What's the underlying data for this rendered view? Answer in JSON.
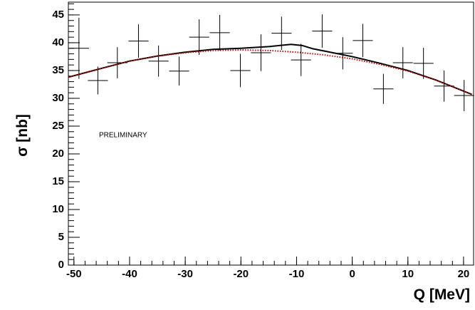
{
  "chart_data": {
    "type": "scatter",
    "xlabel": "Q [MeV]",
    "ylabel": "σ [nb]",
    "annotation": {
      "text": "PRELIMINARY",
      "x": -45.5,
      "y": 23
    },
    "xlim": [
      -51,
      21.8
    ],
    "ylim": [
      0,
      47.3
    ],
    "xticks": [
      -50,
      -40,
      -30,
      -20,
      -10,
      0,
      10,
      20
    ],
    "yticks": [
      0,
      5,
      10,
      15,
      20,
      25,
      30,
      35,
      40,
      45
    ],
    "series": [
      {
        "type": "errorbar",
        "color": "#000000",
        "x": [
          -49.1,
          -45.7,
          -42.2,
          -38.4,
          -34.8,
          -31.1,
          -27.5,
          -23.8,
          -20.1,
          -16.4,
          -12.7,
          -9.2,
          -5.4,
          -1.7,
          1.9,
          5.6,
          9.1,
          12.8,
          16.5,
          20.1
        ],
        "values": [
          39.0,
          33.2,
          36.4,
          40.3,
          36.7,
          34.9,
          41.0,
          41.8,
          35.0,
          38.2,
          41.7,
          36.9,
          42.1,
          38.1,
          40.4,
          31.7,
          36.4,
          36.3,
          32.2,
          30.5
        ],
        "errors": [
          5.5,
          2.5,
          2.8,
          3.0,
          2.8,
          2.6,
          3.2,
          3.2,
          3.0,
          3.3,
          3.0,
          2.9,
          3.0,
          2.9,
          3.0,
          2.7,
          2.8,
          2.8,
          2.8,
          2.8
        ],
        "xerr": 1.8
      },
      {
        "type": "line",
        "color": "#000000",
        "dash": false,
        "x": [
          -51,
          -45,
          -40,
          -35,
          -30,
          -25,
          -20,
          -15,
          -11,
          -9,
          -7,
          -5,
          0,
          5,
          10,
          15,
          20,
          21.5
        ],
        "values": [
          33.8,
          35.4,
          36.7,
          37.6,
          38.3,
          38.8,
          39.0,
          39.3,
          39.7,
          39.5,
          38.9,
          38.5,
          37.5,
          36.3,
          35.0,
          33.3,
          31.3,
          30.7
        ]
      },
      {
        "type": "line",
        "color": "#cc0000",
        "dash": true,
        "x": [
          -51,
          -45,
          -40,
          -35,
          -30,
          -25,
          -20,
          -15,
          -10,
          -5,
          0,
          5,
          10,
          15,
          20,
          21.5
        ],
        "values": [
          33.8,
          35.4,
          36.7,
          37.6,
          38.2,
          38.6,
          38.7,
          38.6,
          38.3,
          37.8,
          37.1,
          36.1,
          34.9,
          33.3,
          31.3,
          30.7
        ]
      }
    ]
  }
}
